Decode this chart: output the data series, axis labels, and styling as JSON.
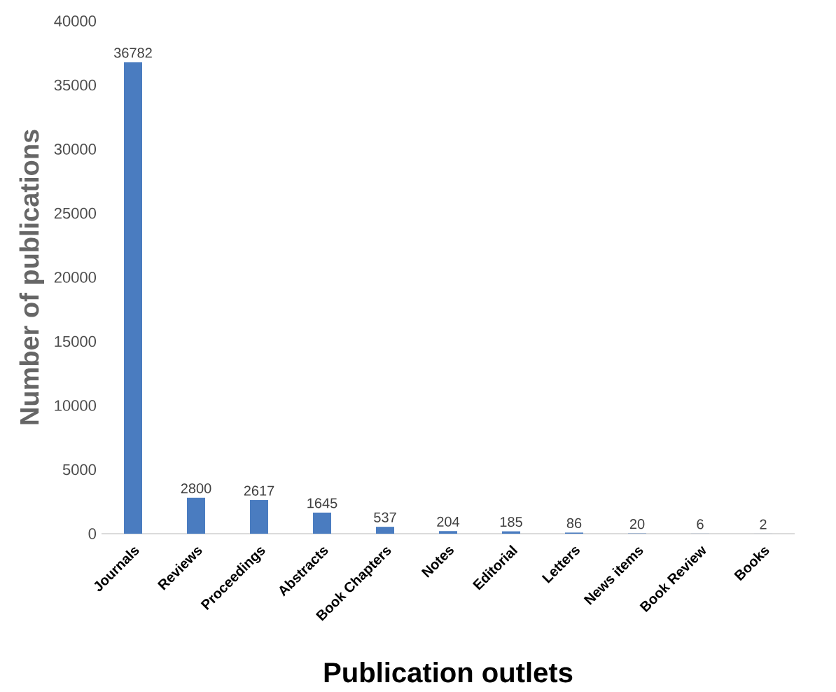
{
  "chart_data": {
    "type": "bar",
    "xlabel": "Publication outlets",
    "ylabel": "Number of publications",
    "categories": [
      "Journals",
      "Reviews",
      "Proceedings",
      "Abstracts",
      "Book Chapters",
      "Notes",
      "Editorial",
      "Letters",
      "News items",
      "Book Review",
      "Books"
    ],
    "values": [
      36782,
      2800,
      2617,
      1645,
      537,
      204,
      185,
      86,
      20,
      6,
      2
    ],
    "color": "#4a7cc0",
    "ylim": [
      0,
      40000
    ],
    "yticks": [
      0,
      5000,
      10000,
      15000,
      20000,
      25000,
      30000,
      35000,
      40000
    ],
    "data_labels": true,
    "grid": false
  }
}
